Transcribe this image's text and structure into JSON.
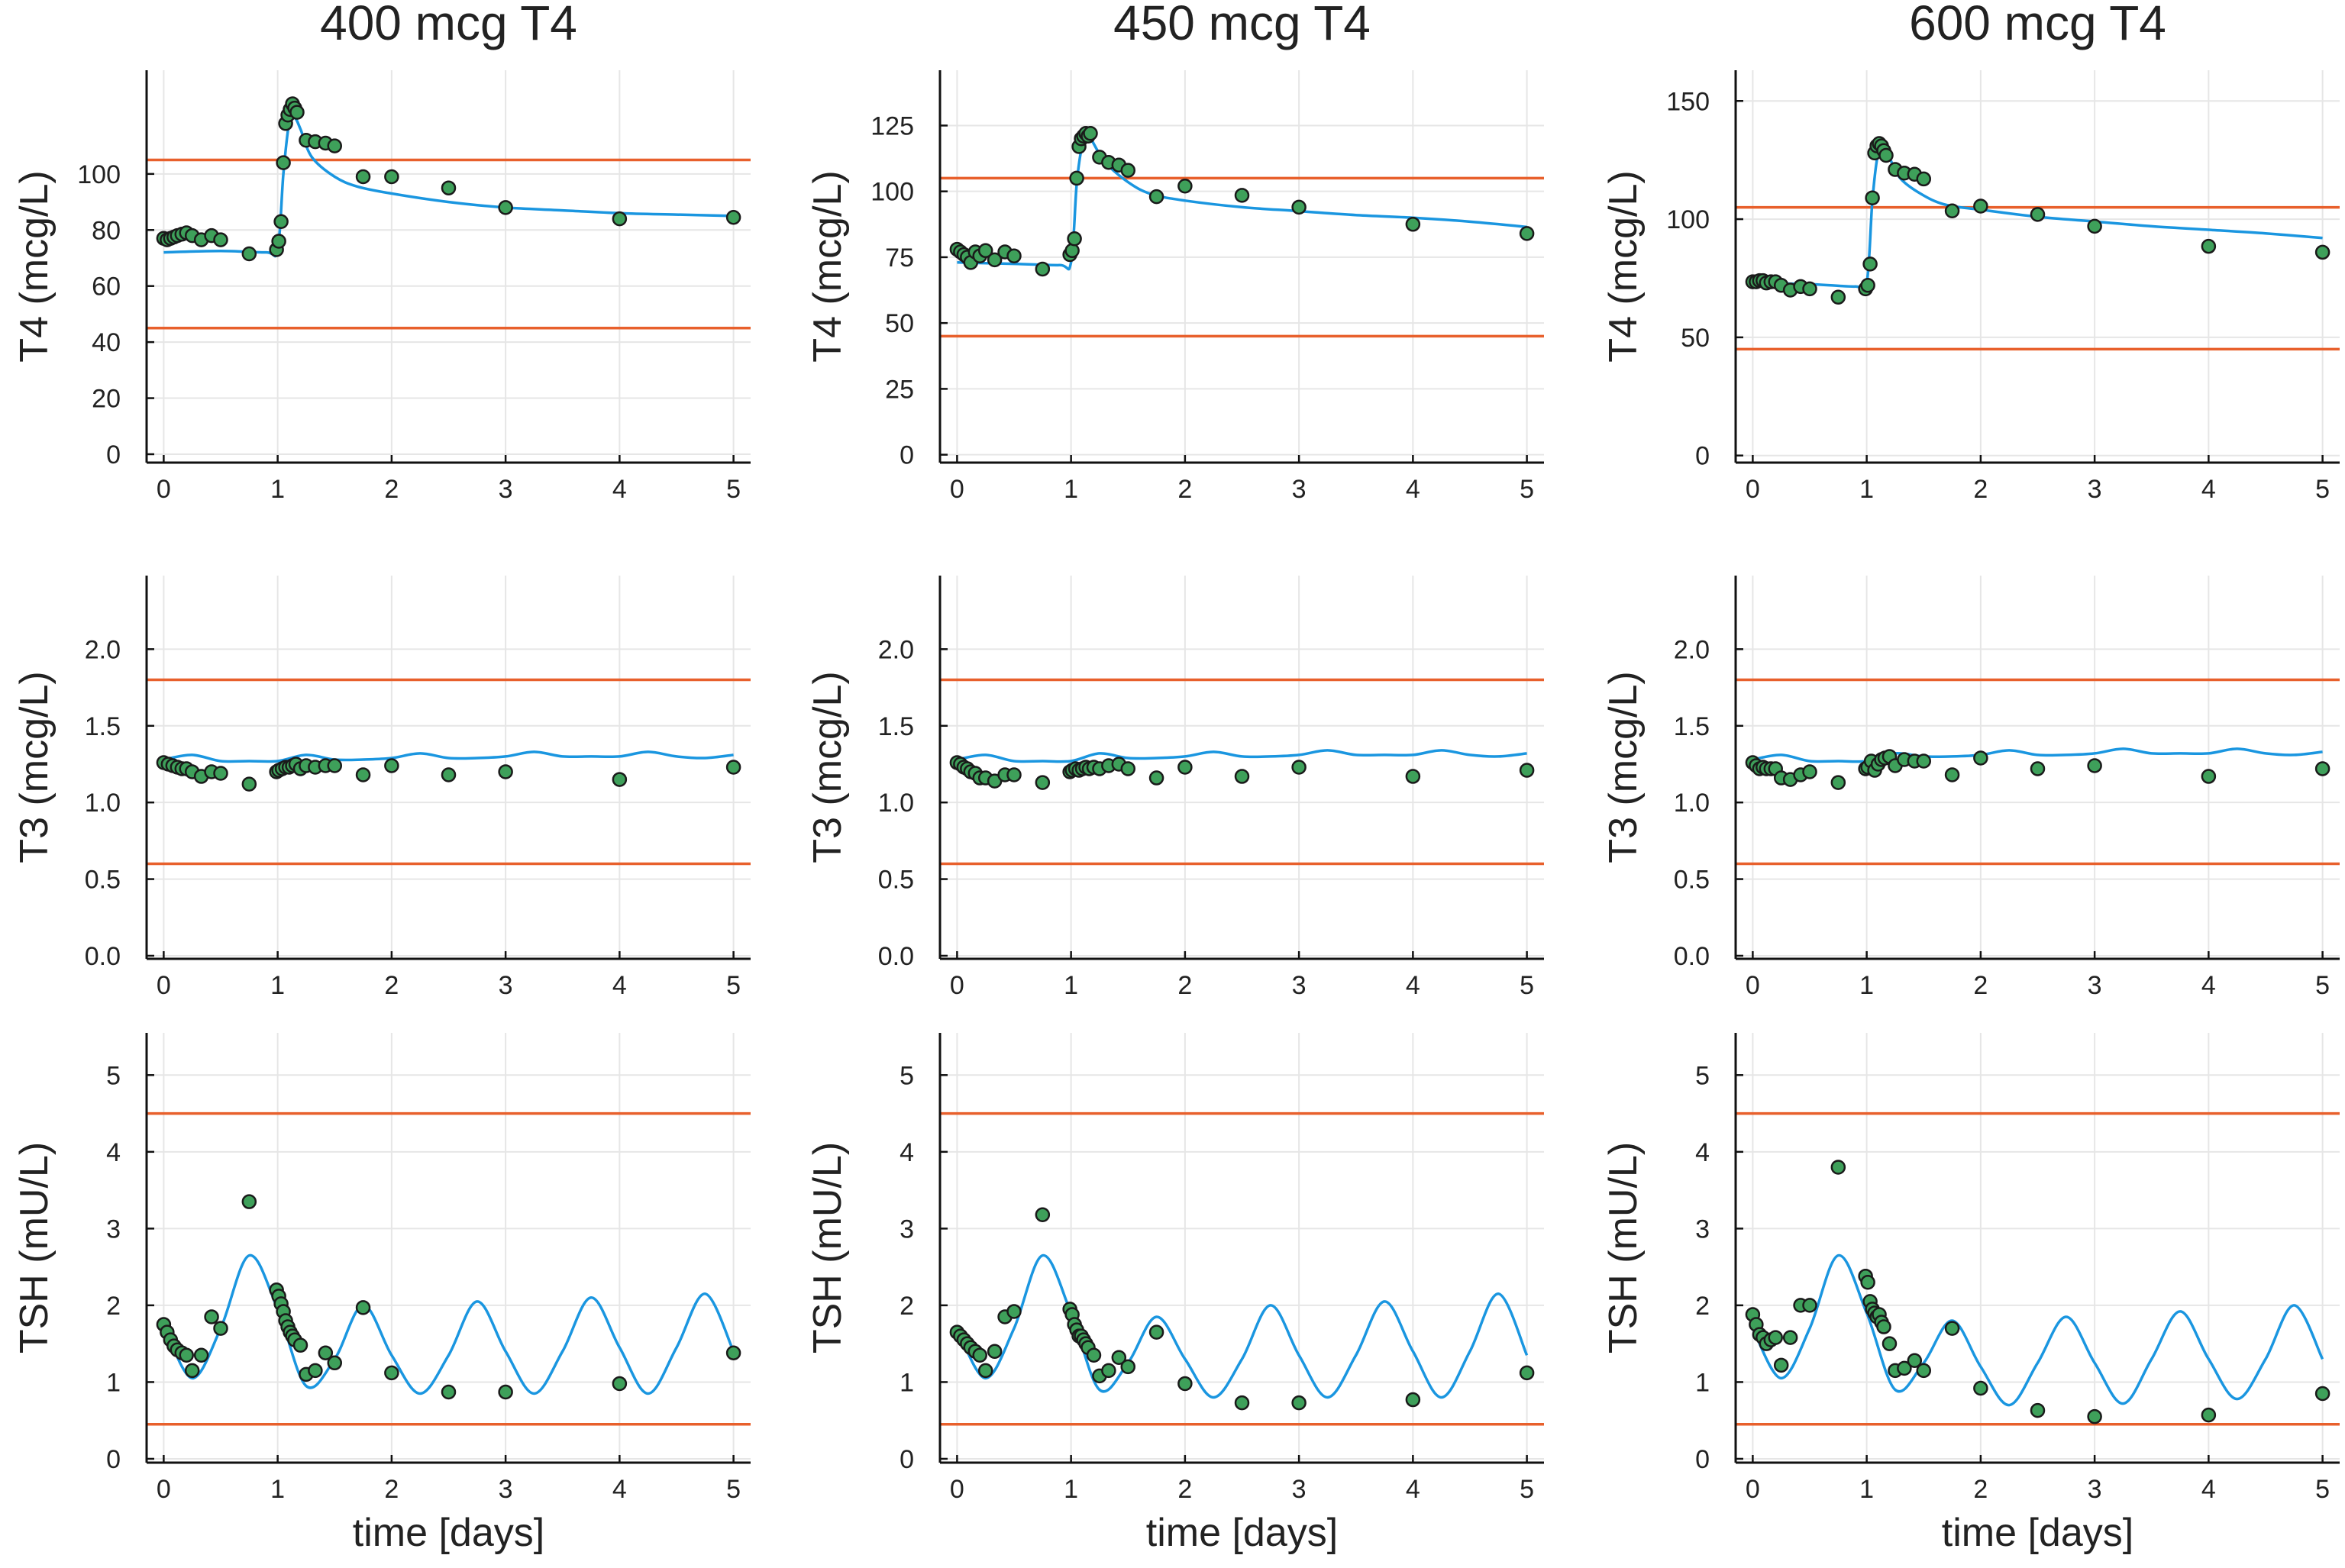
{
  "figure": {
    "column_titles": [
      "400 mcg T4",
      "450 mcg T4",
      "600 mcg T4"
    ],
    "row_ylabels": [
      "T4 (mcg/L)",
      "T3 (mcg/L)",
      "TSH (mU/L)"
    ],
    "xlabel": "time [days]"
  },
  "colors": {
    "model": "#1a96e0",
    "reference": "#e8602c",
    "data": "#3ea05a"
  },
  "chart_data": [
    {
      "id": "t4-400",
      "type": "scatter",
      "title": "400 mcg T4",
      "ylabel": "T4 (mcg/L)",
      "xlabel": "",
      "xlim": [
        -0.15,
        5.15
      ],
      "ylim": [
        -3,
        137
      ],
      "xticks": [
        0,
        1,
        2,
        3,
        4,
        5
      ],
      "yticks": [
        0,
        20,
        40,
        60,
        80,
        100
      ],
      "reference_lines": [
        45,
        105
      ],
      "model_x": [
        0,
        0.5,
        0.9,
        1.0,
        1.05,
        1.1,
        1.15,
        1.2,
        1.3,
        1.5,
        1.7,
        2.0,
        2.5,
        3.0,
        3.5,
        4.0,
        4.5,
        5.0
      ],
      "model_y": [
        72,
        72.5,
        72,
        73,
        100,
        118,
        120,
        116,
        106,
        99,
        95.5,
        93,
        90,
        88,
        87,
        86,
        85.5,
        85
      ],
      "points_x": [
        0,
        0.03,
        0.06,
        0.09,
        0.12,
        0.16,
        0.2,
        0.25,
        0.33,
        0.42,
        0.5,
        0.75,
        0.99,
        1.01,
        1.03,
        1.05,
        1.07,
        1.09,
        1.11,
        1.13,
        1.15,
        1.17,
        1.25,
        1.33,
        1.42,
        1.5,
        1.75,
        2.0,
        2.5,
        3.0,
        4.0,
        5.0
      ],
      "points_y": [
        77,
        76.5,
        77,
        77.5,
        78,
        78.5,
        79,
        78,
        76.5,
        78,
        76.5,
        71.5,
        73,
        76,
        83,
        104,
        118,
        121,
        123,
        125,
        123.5,
        122,
        112,
        111.5,
        111,
        110,
        99,
        99,
        95,
        88,
        84,
        84.5
      ]
    },
    {
      "id": "t4-450",
      "type": "scatter",
      "title": "450 mcg T4",
      "ylabel": "T4 (mcg/L)",
      "xlabel": "",
      "xlim": [
        -0.15,
        5.15
      ],
      "ylim": [
        -3,
        146
      ],
      "xticks": [
        0,
        1,
        2,
        3,
        4,
        5
      ],
      "yticks": [
        0,
        25,
        50,
        75,
        100,
        125
      ],
      "reference_lines": [
        45,
        105
      ],
      "model_x": [
        0,
        0.5,
        0.9,
        1.0,
        1.05,
        1.1,
        1.15,
        1.2,
        1.3,
        1.5,
        1.7,
        2.0,
        2.5,
        3.0,
        3.5,
        4.0,
        4.5,
        5.0
      ],
      "model_y": [
        73,
        72.5,
        72,
        73,
        103,
        118,
        122,
        118,
        111,
        103.5,
        99,
        96.5,
        94,
        92.5,
        91,
        90,
        88.5,
        86.5
      ],
      "points_x": [
        0,
        0.03,
        0.06,
        0.09,
        0.12,
        0.16,
        0.2,
        0.25,
        0.33,
        0.42,
        0.5,
        0.75,
        0.99,
        1.01,
        1.03,
        1.05,
        1.07,
        1.09,
        1.11,
        1.13,
        1.15,
        1.17,
        1.25,
        1.33,
        1.42,
        1.5,
        1.75,
        2.0,
        2.5,
        3.0,
        4.0,
        5.0
      ],
      "points_y": [
        78,
        77,
        76,
        75,
        73,
        77,
        75.5,
        77.5,
        74,
        77,
        75.5,
        70.5,
        76,
        77.5,
        82,
        105,
        117,
        120,
        121,
        122,
        121,
        122,
        113,
        111,
        110,
        108,
        98,
        102,
        98.5,
        94,
        87.5,
        84
      ]
    },
    {
      "id": "t4-600",
      "type": "scatter",
      "title": "600 mcg T4",
      "ylabel": "T4 (mcg/L)",
      "xlabel": "",
      "xlim": [
        -0.15,
        5.15
      ],
      "ylim": [
        -3,
        163
      ],
      "xticks": [
        0,
        1,
        2,
        3,
        4,
        5
      ],
      "yticks": [
        0,
        50,
        100,
        150
      ],
      "reference_lines": [
        45,
        105
      ],
      "model_x": [
        0,
        0.5,
        0.9,
        1.0,
        1.05,
        1.1,
        1.15,
        1.2,
        1.3,
        1.5,
        1.7,
        2.0,
        2.5,
        3.0,
        3.5,
        4.0,
        4.5,
        5.0
      ],
      "model_y": [
        73,
        72.5,
        71.5,
        73,
        108,
        128,
        131,
        126,
        117,
        110,
        106,
        104,
        101,
        99,
        97,
        95.5,
        94,
        92
      ],
      "points_x": [
        0,
        0.03,
        0.06,
        0.09,
        0.12,
        0.16,
        0.2,
        0.25,
        0.33,
        0.42,
        0.5,
        0.75,
        0.99,
        1.01,
        1.03,
        1.05,
        1.07,
        1.09,
        1.11,
        1.13,
        1.15,
        1.17,
        1.25,
        1.33,
        1.42,
        1.5,
        1.75,
        2.0,
        2.5,
        3.0,
        4.0,
        5.0
      ],
      "points_y": [
        73.5,
        73.5,
        74,
        74,
        73,
        73.5,
        73.5,
        72,
        70,
        71.5,
        70.5,
        67,
        70.5,
        72,
        81,
        109,
        128,
        131,
        132,
        131,
        129,
        127,
        121,
        119.5,
        119,
        117,
        103.5,
        105.5,
        102,
        97,
        88.5,
        86
      ]
    },
    {
      "id": "t3-400",
      "type": "scatter",
      "title": "",
      "ylabel": "T3 (mcg/L)",
      "xlabel": "",
      "xlim": [
        -0.15,
        5.15
      ],
      "ylim": [
        -0.02,
        2.48
      ],
      "xticks": [
        0,
        1,
        2,
        3,
        4,
        5
      ],
      "yticks": [
        0,
        0.5,
        1,
        1.5,
        2
      ],
      "ytick_labels": [
        "0.0",
        "0.5",
        "1.0",
        "1.5",
        "2.0"
      ],
      "reference_lines": [
        0.6,
        1.8
      ],
      "model_x": [
        0,
        0.25,
        0.5,
        0.75,
        1.0,
        1.25,
        1.5,
        1.75,
        2.0,
        2.25,
        2.5,
        2.75,
        3.0,
        3.25,
        3.5,
        3.75,
        4.0,
        4.25,
        4.5,
        4.75,
        5.0
      ],
      "model_y": [
        1.28,
        1.31,
        1.27,
        1.27,
        1.27,
        1.31,
        1.28,
        1.28,
        1.29,
        1.32,
        1.29,
        1.29,
        1.3,
        1.33,
        1.3,
        1.3,
        1.3,
        1.33,
        1.3,
        1.29,
        1.31
      ],
      "points_x": [
        0,
        0.04,
        0.08,
        0.12,
        0.16,
        0.2,
        0.25,
        0.33,
        0.42,
        0.5,
        0.75,
        0.99,
        1.01,
        1.04,
        1.07,
        1.1,
        1.13,
        1.16,
        1.2,
        1.25,
        1.33,
        1.42,
        1.5,
        1.75,
        2.0,
        2.5,
        3.0,
        4.0,
        5.0
      ],
      "points_y": [
        1.26,
        1.25,
        1.24,
        1.23,
        1.22,
        1.22,
        1.2,
        1.17,
        1.2,
        1.19,
        1.12,
        1.2,
        1.21,
        1.22,
        1.23,
        1.23,
        1.24,
        1.25,
        1.22,
        1.24,
        1.23,
        1.24,
        1.24,
        1.18,
        1.24,
        1.18,
        1.2,
        1.15,
        1.23
      ]
    },
    {
      "id": "t3-450",
      "type": "scatter",
      "title": "",
      "ylabel": "T3 (mcg/L)",
      "xlabel": "",
      "xlim": [
        -0.15,
        5.15
      ],
      "ylim": [
        -0.02,
        2.48
      ],
      "xticks": [
        0,
        1,
        2,
        3,
        4,
        5
      ],
      "yticks": [
        0,
        0.5,
        1,
        1.5,
        2
      ],
      "ytick_labels": [
        "0.0",
        "0.5",
        "1.0",
        "1.5",
        "2.0"
      ],
      "reference_lines": [
        0.6,
        1.8
      ],
      "model_x": [
        0,
        0.25,
        0.5,
        0.75,
        1.0,
        1.25,
        1.5,
        1.75,
        2.0,
        2.25,
        2.5,
        2.75,
        3.0,
        3.25,
        3.5,
        3.75,
        4.0,
        4.25,
        4.5,
        4.75,
        5.0
      ],
      "model_y": [
        1.28,
        1.31,
        1.27,
        1.27,
        1.27,
        1.32,
        1.29,
        1.29,
        1.3,
        1.33,
        1.3,
        1.3,
        1.31,
        1.34,
        1.31,
        1.31,
        1.31,
        1.34,
        1.31,
        1.3,
        1.32
      ],
      "points_x": [
        0,
        0.03,
        0.06,
        0.09,
        0.12,
        0.16,
        0.2,
        0.25,
        0.33,
        0.42,
        0.5,
        0.75,
        0.99,
        1.01,
        1.04,
        1.07,
        1.1,
        1.13,
        1.16,
        1.2,
        1.25,
        1.33,
        1.42,
        1.5,
        1.75,
        2.0,
        2.5,
        3.0,
        4.0,
        5.0
      ],
      "points_y": [
        1.26,
        1.25,
        1.23,
        1.22,
        1.2,
        1.19,
        1.16,
        1.16,
        1.14,
        1.18,
        1.18,
        1.13,
        1.2,
        1.21,
        1.22,
        1.21,
        1.22,
        1.23,
        1.22,
        1.23,
        1.22,
        1.24,
        1.25,
        1.22,
        1.16,
        1.23,
        1.17,
        1.23,
        1.17,
        1.21
      ]
    },
    {
      "id": "t3-600",
      "type": "scatter",
      "title": "",
      "ylabel": "T3 (mcg/L)",
      "xlabel": "",
      "xlim": [
        -0.15,
        5.15
      ],
      "ylim": [
        -0.02,
        2.48
      ],
      "xticks": [
        0,
        1,
        2,
        3,
        4,
        5
      ],
      "yticks": [
        0,
        0.5,
        1,
        1.5,
        2
      ],
      "ytick_labels": [
        "0.0",
        "0.5",
        "1.0",
        "1.5",
        "2.0"
      ],
      "reference_lines": [
        0.6,
        1.8
      ],
      "model_x": [
        0,
        0.25,
        0.5,
        0.75,
        1.0,
        1.25,
        1.5,
        1.75,
        2.0,
        2.25,
        2.5,
        2.75,
        3.0,
        3.25,
        3.5,
        3.75,
        4.0,
        4.25,
        4.5,
        4.75,
        5.0
      ],
      "model_y": [
        1.28,
        1.31,
        1.27,
        1.27,
        1.27,
        1.32,
        1.3,
        1.3,
        1.31,
        1.34,
        1.31,
        1.31,
        1.32,
        1.35,
        1.32,
        1.32,
        1.32,
        1.35,
        1.32,
        1.31,
        1.33
      ],
      "points_x": [
        0,
        0.03,
        0.06,
        0.09,
        0.12,
        0.16,
        0.2,
        0.25,
        0.33,
        0.42,
        0.5,
        0.75,
        0.99,
        1.01,
        1.04,
        1.07,
        1.1,
        1.13,
        1.16,
        1.2,
        1.25,
        1.33,
        1.42,
        1.5,
        1.75,
        2.0,
        2.5,
        3.0,
        4.0,
        5.0
      ],
      "points_y": [
        1.26,
        1.24,
        1.22,
        1.23,
        1.22,
        1.22,
        1.22,
        1.16,
        1.15,
        1.18,
        1.2,
        1.13,
        1.22,
        1.23,
        1.27,
        1.21,
        1.25,
        1.28,
        1.29,
        1.3,
        1.24,
        1.28,
        1.27,
        1.27,
        1.18,
        1.29,
        1.22,
        1.24,
        1.17,
        1.22
      ]
    },
    {
      "id": "tsh-400",
      "type": "scatter",
      "title": "",
      "ylabel": "TSH (mU/L)",
      "xlabel": "time [days]",
      "xlim": [
        -0.15,
        5.15
      ],
      "ylim": [
        -0.05,
        5.55
      ],
      "xticks": [
        0,
        1,
        2,
        3,
        4,
        5
      ],
      "yticks": [
        0,
        1,
        2,
        3,
        4,
        5
      ],
      "reference_lines": [
        0.45,
        4.5
      ],
      "model_x": [
        0,
        0.25,
        0.5,
        0.75,
        1.0,
        1.25,
        1.5,
        1.75,
        2.0,
        2.25,
        2.5,
        2.75,
        3.0,
        3.25,
        3.5,
        3.75,
        4.0,
        4.25,
        4.5,
        4.75,
        5.0
      ],
      "model_y": [
        1.75,
        1.05,
        1.7,
        2.65,
        1.95,
        0.95,
        1.3,
        2.0,
        1.35,
        0.85,
        1.35,
        2.05,
        1.4,
        0.85,
        1.4,
        2.1,
        1.45,
        0.85,
        1.45,
        2.15,
        1.4
      ],
      "points_x": [
        0,
        0.03,
        0.06,
        0.09,
        0.12,
        0.16,
        0.2,
        0.25,
        0.33,
        0.42,
        0.5,
        0.75,
        0.99,
        1.01,
        1.03,
        1.05,
        1.07,
        1.09,
        1.11,
        1.13,
        1.15,
        1.2,
        1.25,
        1.33,
        1.42,
        1.5,
        1.75,
        2.0,
        2.5,
        3.0,
        4.0,
        5.0
      ],
      "points_y": [
        1.75,
        1.65,
        1.55,
        1.47,
        1.42,
        1.38,
        1.35,
        1.15,
        1.35,
        1.85,
        1.7,
        3.35,
        2.2,
        2.12,
        2.02,
        1.92,
        1.8,
        1.72,
        1.65,
        1.6,
        1.55,
        1.48,
        1.1,
        1.15,
        1.38,
        1.25,
        1.97,
        1.12,
        0.87,
        0.87,
        0.98,
        1.38
      ]
    },
    {
      "id": "tsh-450",
      "type": "scatter",
      "title": "",
      "ylabel": "TSH (mU/L)",
      "xlabel": "time [days]",
      "xlim": [
        -0.15,
        5.15
      ],
      "ylim": [
        -0.05,
        5.55
      ],
      "xticks": [
        0,
        1,
        2,
        3,
        4,
        5
      ],
      "yticks": [
        0,
        1,
        2,
        3,
        4,
        5
      ],
      "reference_lines": [
        0.45,
        4.5
      ],
      "model_x": [
        0,
        0.25,
        0.5,
        0.75,
        1.0,
        1.25,
        1.5,
        1.75,
        2.0,
        2.25,
        2.5,
        2.75,
        3.0,
        3.25,
        3.5,
        3.75,
        4.0,
        4.25,
        4.5,
        4.75,
        5.0
      ],
      "model_y": [
        1.7,
        1.05,
        1.7,
        2.65,
        1.9,
        0.9,
        1.25,
        1.85,
        1.3,
        0.8,
        1.3,
        2.0,
        1.35,
        0.8,
        1.35,
        2.05,
        1.4,
        0.8,
        1.4,
        2.15,
        1.35
      ],
      "points_x": [
        0,
        0.03,
        0.06,
        0.09,
        0.12,
        0.16,
        0.2,
        0.25,
        0.33,
        0.42,
        0.5,
        0.75,
        0.99,
        1.01,
        1.03,
        1.05,
        1.07,
        1.09,
        1.11,
        1.13,
        1.15,
        1.2,
        1.25,
        1.33,
        1.42,
        1.5,
        1.75,
        2.0,
        2.5,
        3.0,
        4.0,
        5.0
      ],
      "points_y": [
        1.65,
        1.6,
        1.55,
        1.5,
        1.45,
        1.4,
        1.35,
        1.15,
        1.4,
        1.85,
        1.92,
        3.18,
        1.95,
        1.88,
        1.75,
        1.68,
        1.6,
        1.6,
        1.55,
        1.5,
        1.45,
        1.35,
        1.08,
        1.15,
        1.32,
        1.2,
        1.65,
        0.98,
        0.73,
        0.73,
        0.77,
        1.12
      ]
    },
    {
      "id": "tsh-600",
      "type": "scatter",
      "title": "",
      "ylabel": "TSH (mU/L)",
      "xlabel": "time [days]",
      "xlim": [
        -0.15,
        5.15
      ],
      "ylim": [
        -0.05,
        5.55
      ],
      "xticks": [
        0,
        1,
        2,
        3,
        4,
        5
      ],
      "yticks": [
        0,
        1,
        2,
        3,
        4,
        5
      ],
      "reference_lines": [
        0.45,
        4.5
      ],
      "model_x": [
        0,
        0.25,
        0.5,
        0.75,
        1.0,
        1.25,
        1.5,
        1.75,
        2.0,
        2.25,
        2.5,
        2.75,
        3.0,
        3.25,
        3.5,
        3.75,
        4.0,
        4.25,
        4.5,
        4.75,
        5.0
      ],
      "model_y": [
        1.7,
        1.05,
        1.7,
        2.65,
        1.9,
        0.9,
        1.25,
        1.8,
        1.2,
        0.7,
        1.25,
        1.85,
        1.25,
        0.72,
        1.3,
        1.92,
        1.3,
        0.78,
        1.3,
        2.0,
        1.3
      ],
      "points_x": [
        0,
        0.03,
        0.06,
        0.09,
        0.12,
        0.16,
        0.2,
        0.25,
        0.33,
        0.42,
        0.5,
        0.75,
        0.99,
        1.01,
        1.03,
        1.05,
        1.07,
        1.09,
        1.11,
        1.13,
        1.15,
        1.2,
        1.25,
        1.33,
        1.42,
        1.5,
        1.75,
        2.0,
        2.5,
        3.0,
        4.0,
        5.0
      ],
      "points_y": [
        1.88,
        1.75,
        1.62,
        1.58,
        1.5,
        1.55,
        1.58,
        1.22,
        1.58,
        2.0,
        2.0,
        3.8,
        2.38,
        2.3,
        2.05,
        1.95,
        1.9,
        1.85,
        1.88,
        1.78,
        1.72,
        1.5,
        1.15,
        1.18,
        1.28,
        1.15,
        1.7,
        0.92,
        0.63,
        0.55,
        0.57,
        0.85
      ]
    }
  ]
}
